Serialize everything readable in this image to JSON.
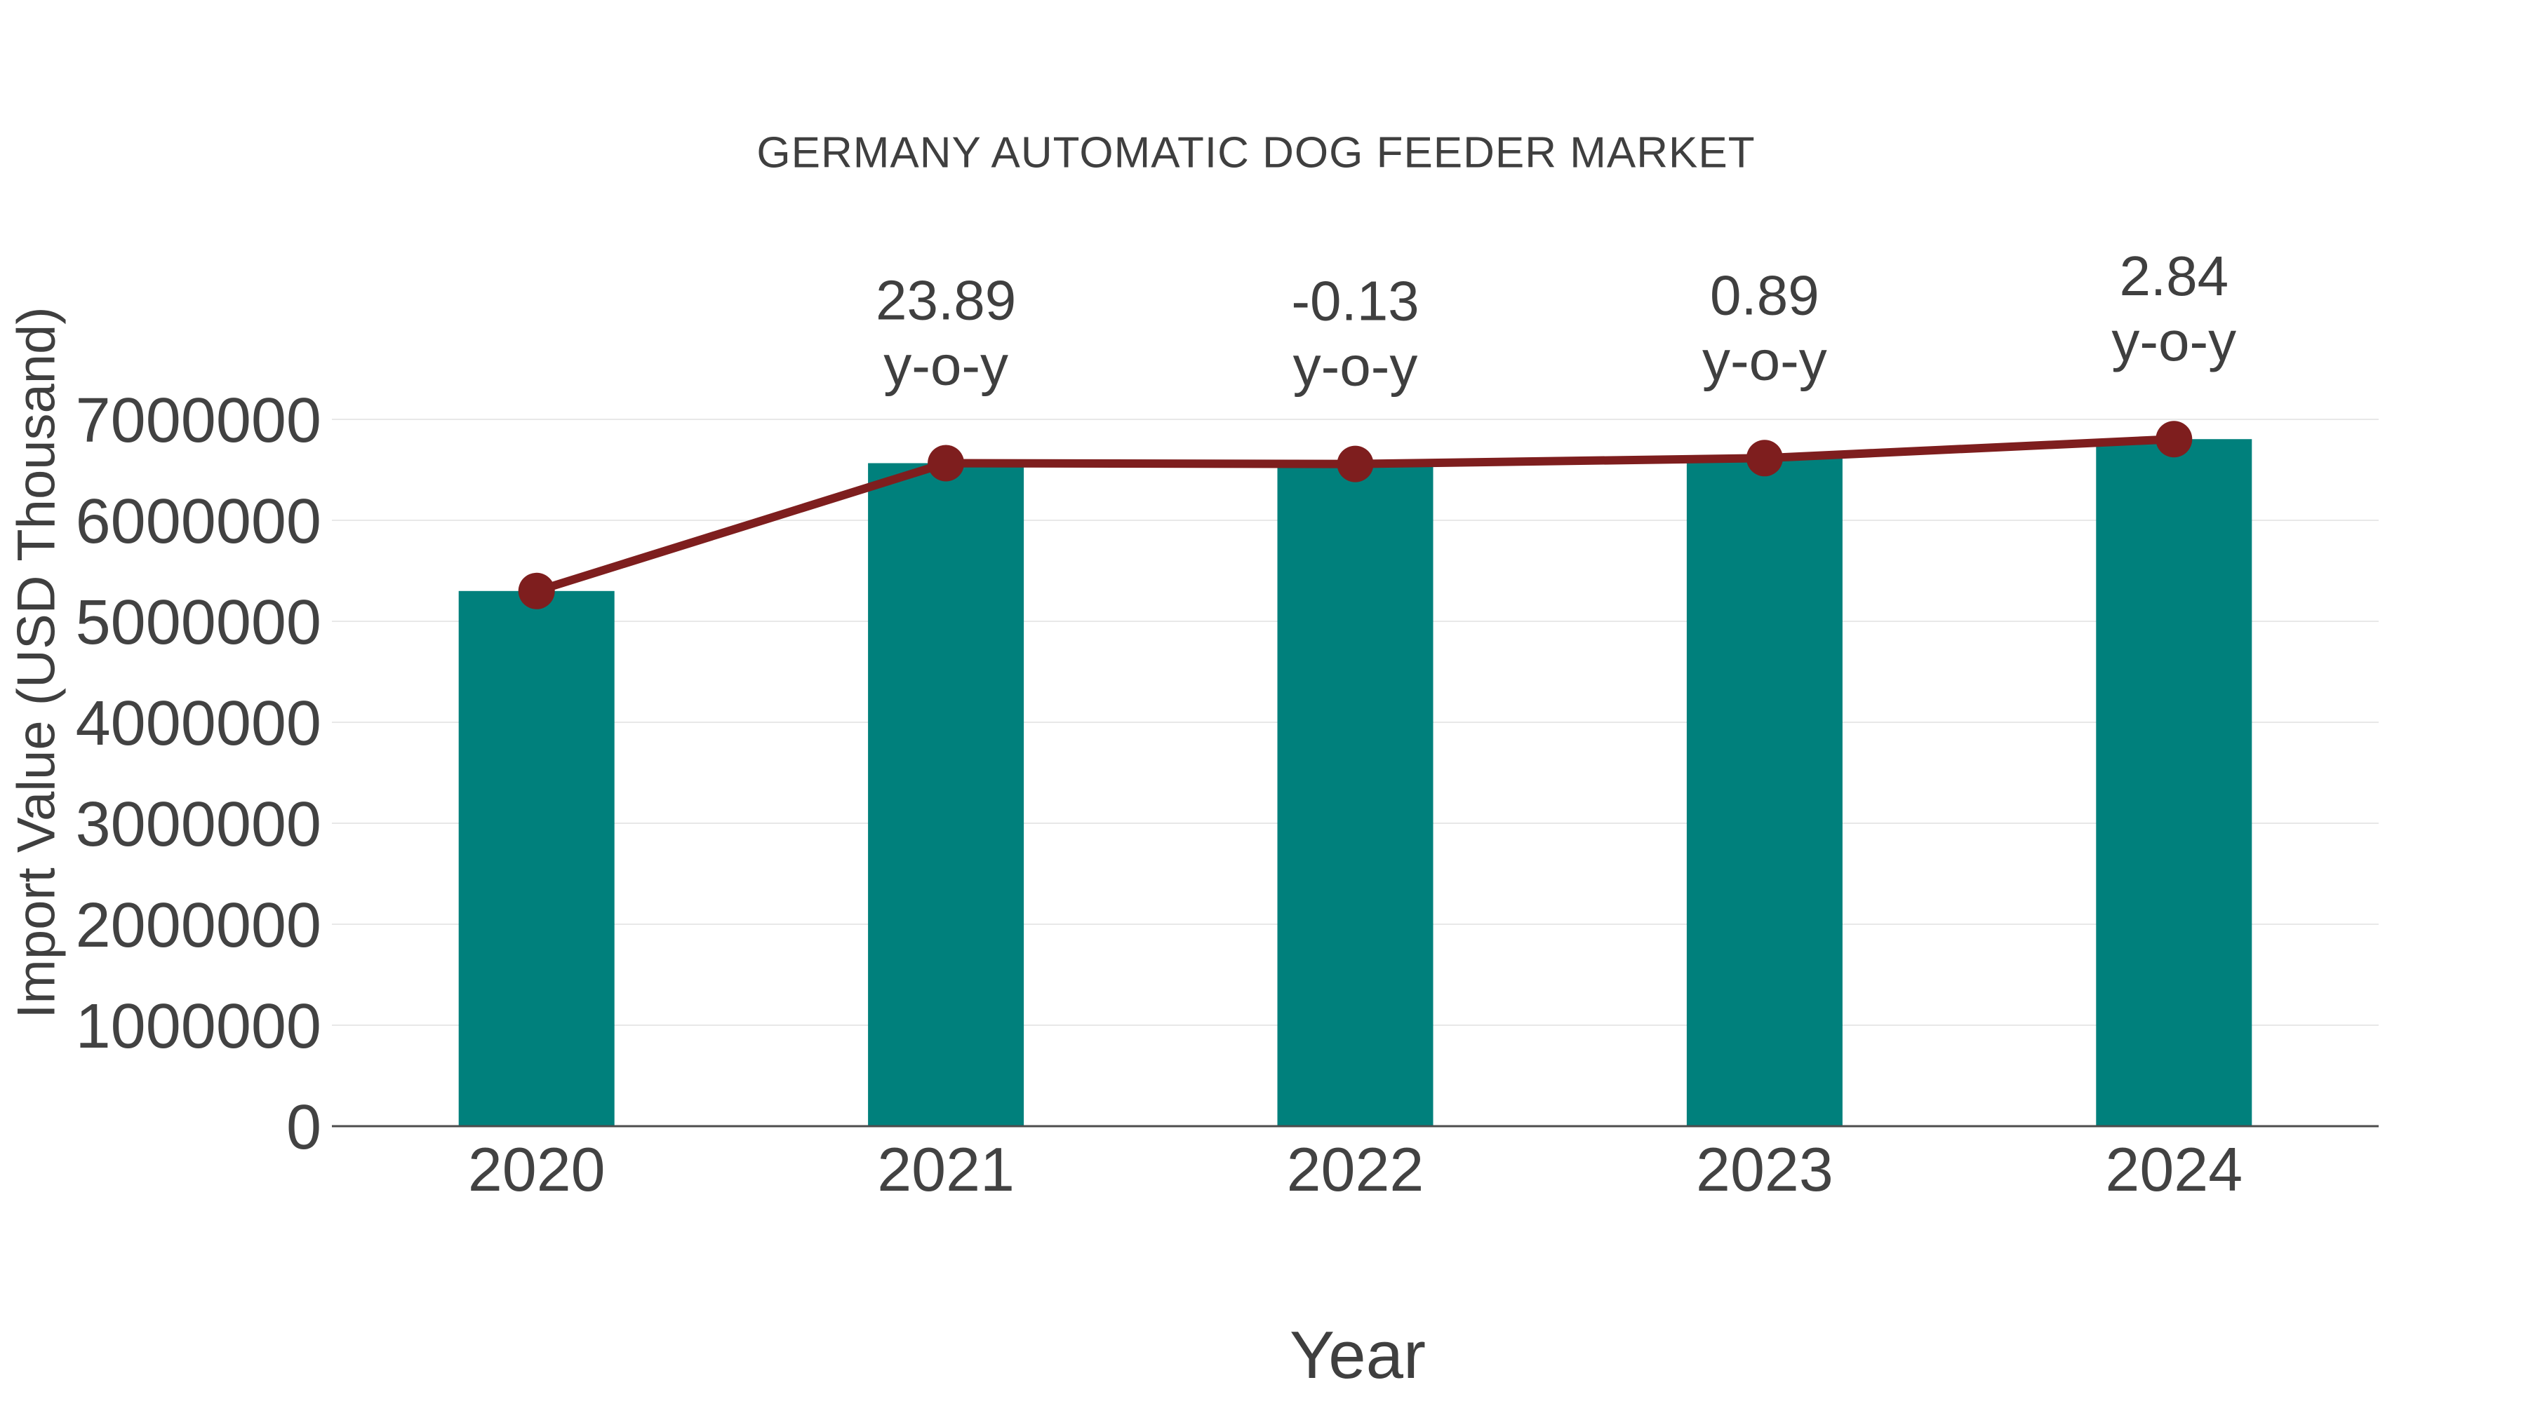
{
  "chart_data": {
    "type": "bar+line",
    "title": "GERMANY AUTOMATIC DOG FEEDER MARKET",
    "xlabel": "Year",
    "ylabel": "Import Value (USD Thousand)",
    "categories": [
      "2020",
      "2021",
      "2022",
      "2023",
      "2024"
    ],
    "series": [
      {
        "name": "Import Value (USD Thousand)",
        "type": "bar",
        "color": "#00807C",
        "values": [
          5300000,
          6566000,
          6558000,
          6616000,
          6804000
        ]
      },
      {
        "name": "y-o-y",
        "type": "line",
        "color": "#7E1E1E",
        "values": [
          5300000,
          6566000,
          6558000,
          6616000,
          6804000
        ]
      }
    ],
    "yoy_percent": [
      null,
      23.89,
      -0.13,
      0.89,
      2.84
    ],
    "annotations": [
      {
        "category": "2021",
        "line1": "23.89",
        "line2": "y-o-y"
      },
      {
        "category": "2022",
        "line1": "-0.13",
        "line2": "y-o-y"
      },
      {
        "category": "2023",
        "line1": "0.89",
        "line2": "y-o-y"
      },
      {
        "category": "2024",
        "line1": "2.84",
        "line2": "y-o-y"
      }
    ],
    "ylim": [
      0,
      7000000
    ],
    "ytick_step": 1000000,
    "yticks": [
      "0",
      "1000000",
      "2000000",
      "3000000",
      "4000000",
      "5000000",
      "6000000",
      "7000000"
    ],
    "grid": true,
    "legend_position": "none",
    "colors": {
      "bar": "#00807C",
      "line": "#7E1E1E",
      "marker": "#7E1E1E",
      "gridline": "#E8E8E8",
      "axis_line": "#4D4D4D",
      "text": "#3F3F3F",
      "tick_text": "#424242",
      "background": "#FFFFFF"
    }
  }
}
